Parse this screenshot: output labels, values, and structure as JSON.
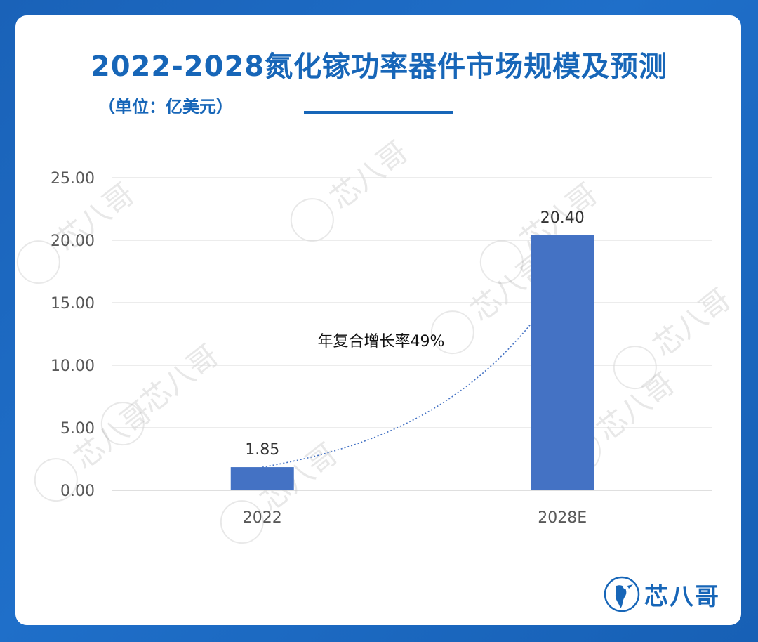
{
  "header": {
    "title": "2022-2028氮化镓功率器件市场规模及预测",
    "unit": "（单位：亿美元）"
  },
  "watermark": {
    "text": "芯八哥"
  },
  "brand": {
    "name": "芯八哥",
    "logo_icon": "bird-logo-icon"
  },
  "colors": {
    "bar": "#4472c4",
    "title": "#1766b8",
    "trend": "#4472c4",
    "grid": "#d9d9d9"
  },
  "chart_data": {
    "type": "bar",
    "categories": [
      "2022",
      "2028E"
    ],
    "values": [
      1.85,
      20.4
    ],
    "data_labels": [
      "1.85",
      "20.40"
    ],
    "y_ticks": [
      "0.00",
      "5.00",
      "10.00",
      "15.00",
      "20.00",
      "25.00"
    ],
    "ylim": [
      0,
      25
    ],
    "grid": true,
    "trendline": {
      "style": "dotted",
      "type": "exponential"
    },
    "annotation": "年复合增长率49%"
  }
}
